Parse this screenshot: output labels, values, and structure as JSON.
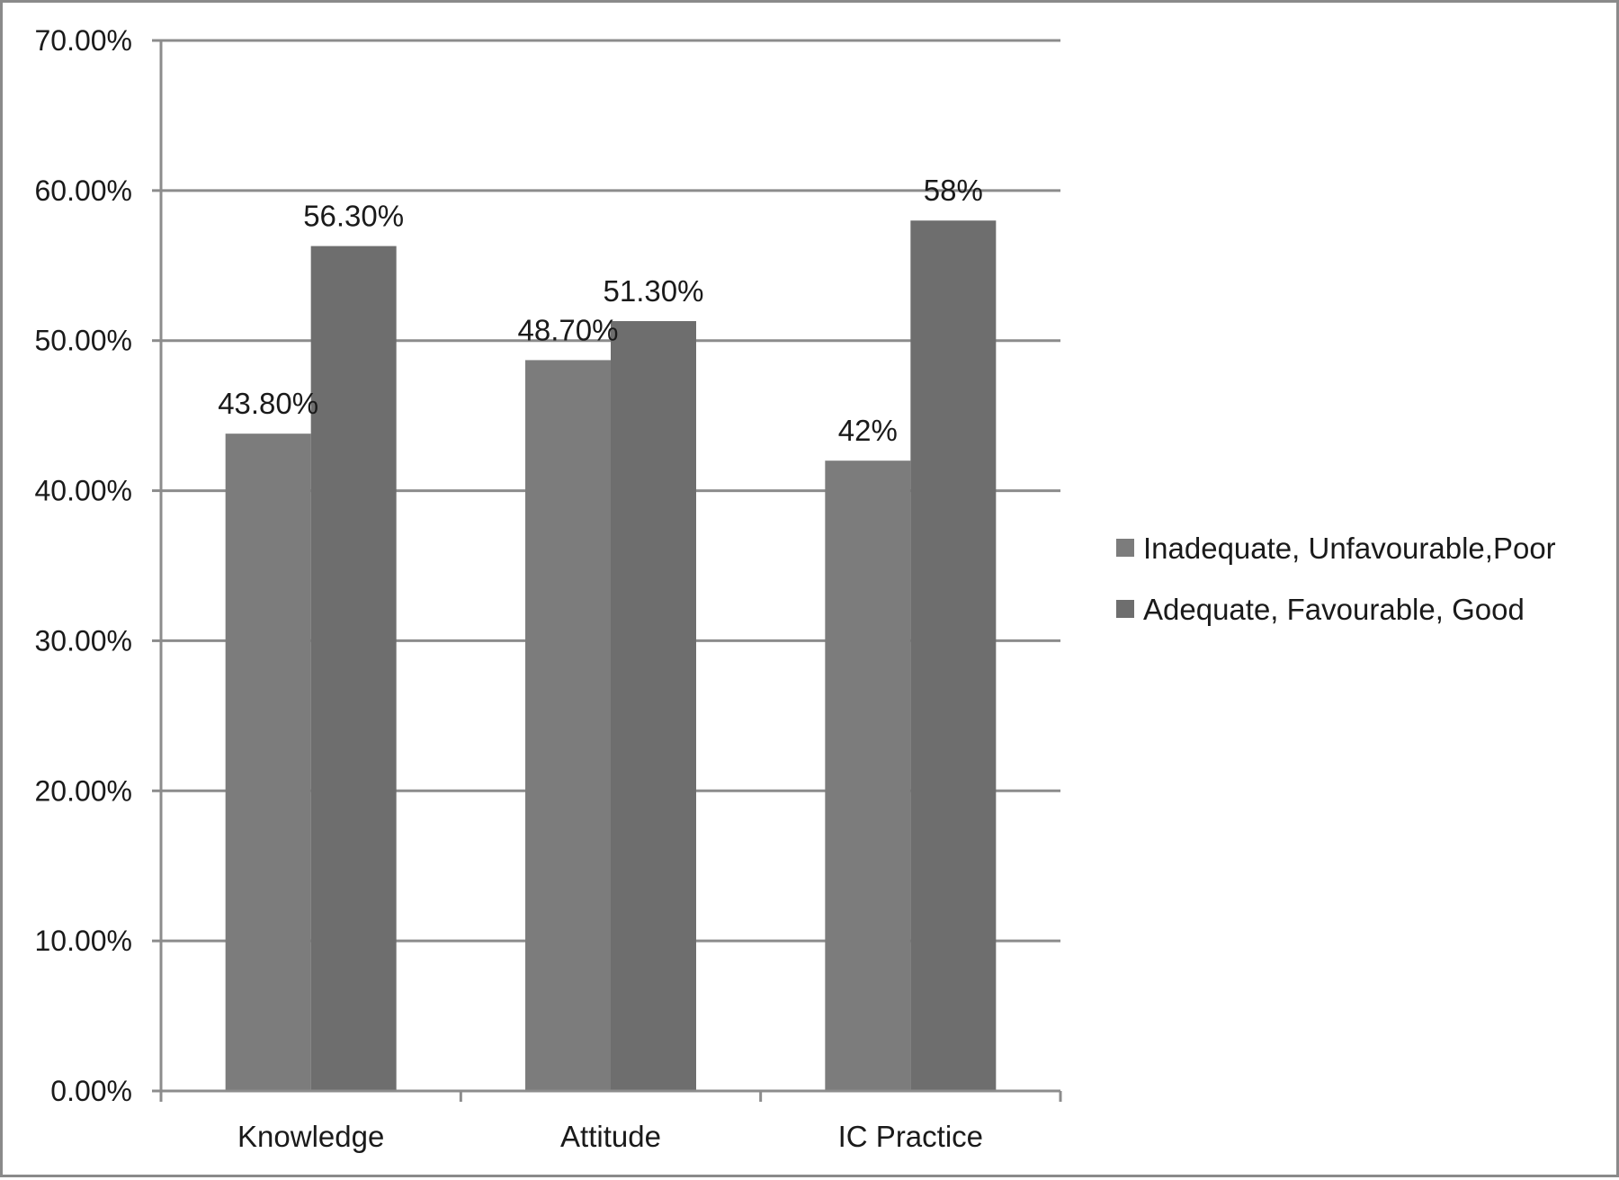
{
  "chart_data": {
    "type": "bar",
    "title": "",
    "xlabel": "",
    "ylabel": "",
    "categories": [
      "Knowledge",
      "Attitude",
      "IC Practice"
    ],
    "series": [
      {
        "name": "Inadequate, Unfavourable,Poor",
        "values": [
          43.8,
          48.7,
          42
        ],
        "labels": [
          "43.80%",
          "48.70%",
          "42%"
        ],
        "color": "#7c7c7c"
      },
      {
        "name": "Adequate, Favourable, Good",
        "values": [
          56.3,
          51.3,
          58
        ],
        "labels": [
          "56.30%",
          "51.30%",
          "58%"
        ],
        "color": "#6e6e6e"
      }
    ],
    "ylim": [
      0,
      70
    ],
    "yticks": [
      0,
      10,
      20,
      30,
      40,
      50,
      60,
      70
    ],
    "ytick_labels": [
      "0.00%",
      "10.00%",
      "20.00%",
      "30.00%",
      "40.00%",
      "50.00%",
      "60.00%",
      "70.00%"
    ],
    "grid": true,
    "grid_color": "#8c8c8c",
    "legend_position": "right"
  }
}
